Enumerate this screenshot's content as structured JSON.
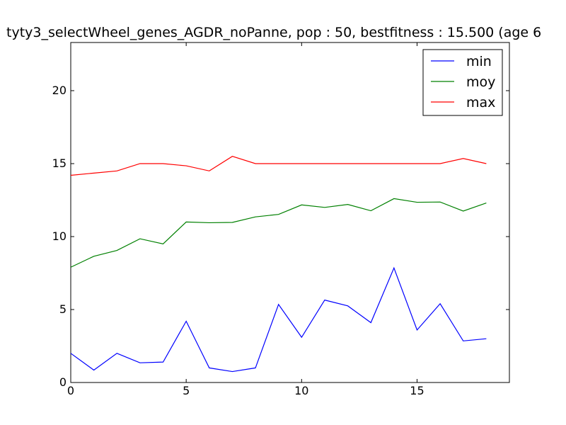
{
  "chart_data": {
    "type": "line",
    "title": "tyty3_selectWheel_genes_AGDR_noPanne, pop : 50, bestfitness : 15.500 (age 6",
    "xlabel": "",
    "ylabel": "",
    "xlim": [
      0,
      19
    ],
    "ylim": [
      0,
      23.3
    ],
    "xticks": [
      0,
      5,
      10,
      15
    ],
    "yticks": [
      0,
      5,
      10,
      15,
      20
    ],
    "legend_position": "top-right",
    "grid": false,
    "x": [
      0,
      1,
      2,
      3,
      4,
      5,
      6,
      7,
      8,
      9,
      10,
      11,
      12,
      13,
      14,
      15,
      16,
      17,
      18
    ],
    "series": [
      {
        "name": "min",
        "color": "#0000ff",
        "values": [
          2.0,
          0.85,
          2.0,
          1.35,
          1.4,
          4.2,
          1.0,
          0.75,
          1.0,
          5.35,
          3.1,
          5.65,
          5.25,
          4.1,
          7.85,
          3.6,
          5.4,
          2.85,
          3.0
        ]
      },
      {
        "name": "moy",
        "color": "#008000",
        "values": [
          7.9,
          8.65,
          9.05,
          9.85,
          9.5,
          11.0,
          10.95,
          10.97,
          11.35,
          11.52,
          12.17,
          12.0,
          12.2,
          11.77,
          12.6,
          12.35,
          12.37,
          11.75,
          12.3
        ]
      },
      {
        "name": "max",
        "color": "#ff0000",
        "values": [
          14.2,
          14.35,
          14.5,
          15.0,
          15.0,
          14.85,
          14.5,
          15.5,
          15.0,
          15.0,
          15.0,
          15.0,
          15.0,
          15.0,
          15.0,
          15.0,
          15.0,
          15.35,
          15.0
        ]
      }
    ]
  }
}
